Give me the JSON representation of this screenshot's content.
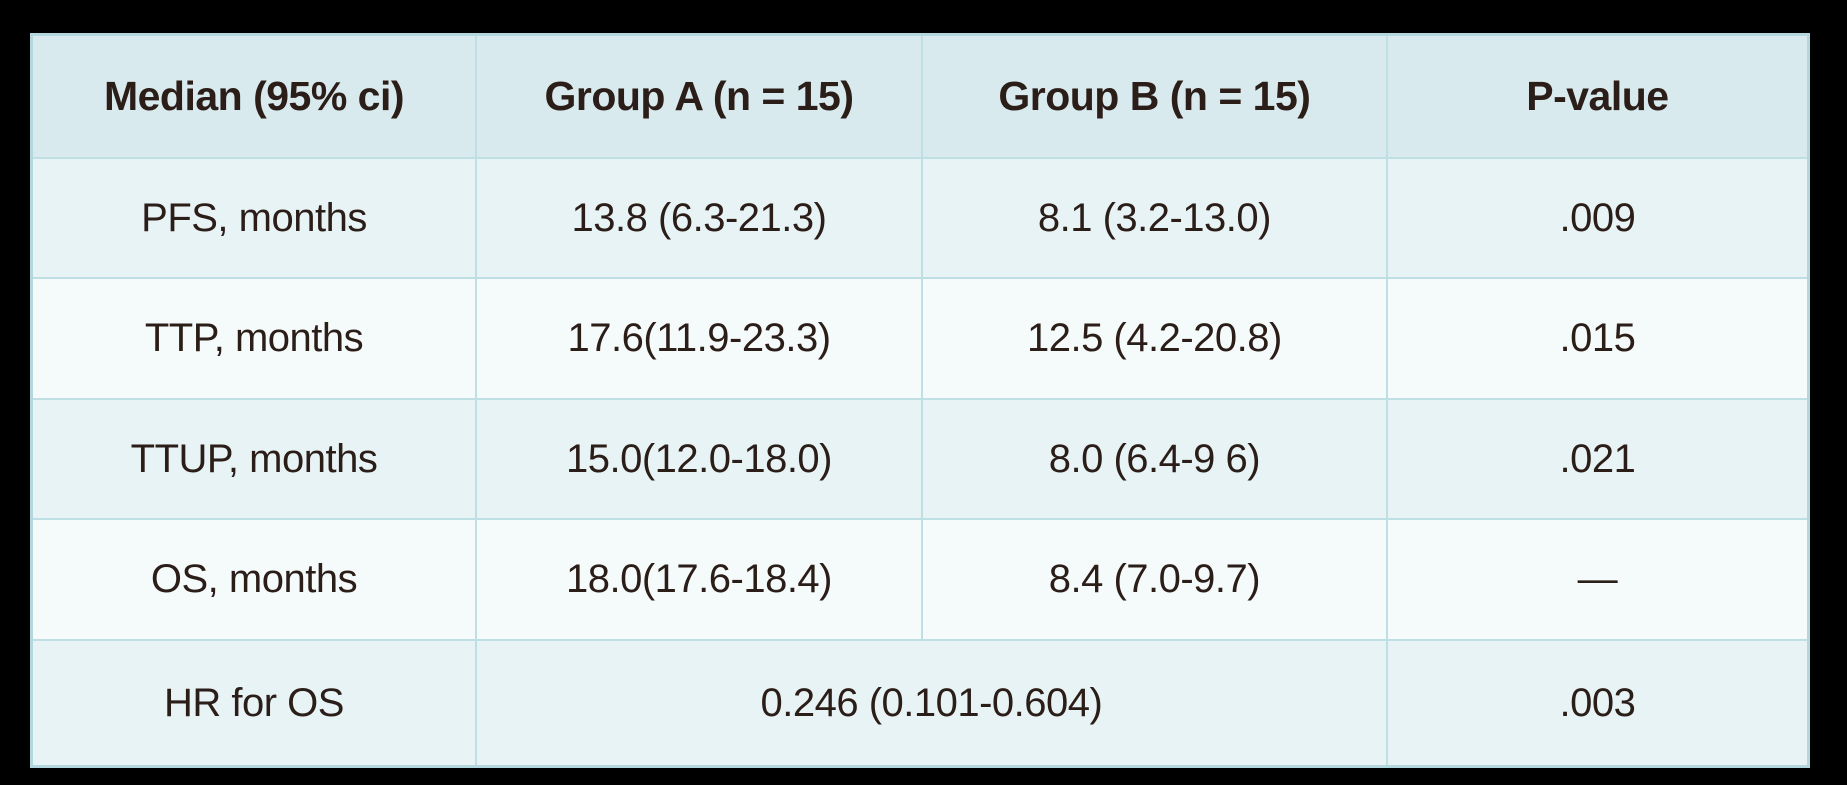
{
  "colors": {
    "canvas_background": "#000000",
    "header_bg": "#d8eaee",
    "row_odd_bg": "#e8f3f6",
    "row_even_bg": "#f5fafb",
    "grid_line": "#bedfe4",
    "outer_border": "#b2d8de",
    "text": "#2b1d18"
  },
  "chart_data": {
    "type": "table",
    "title": "",
    "columns": [
      "Median (95% ci)",
      "Group A (n = 15)",
      "Group B (n = 15)",
      "P-value"
    ],
    "rows": [
      [
        "PFS, months",
        "13.8 (6.3-21.3)",
        "8.1 (3.2-13.0)",
        ".009"
      ],
      [
        "TTP, months",
        "17.6(11.9-23.3)",
        "12.5 (4.2-20.8)",
        ".015"
      ],
      [
        "TTUP, months",
        "15.0(12.0-18.0)",
        "8.0 (6.4-9 6)",
        ".021"
      ],
      [
        "OS, months",
        "18.0(17.6-18.4)",
        "8.4 (7.0-9.7)",
        "—"
      ]
    ],
    "footer_row": {
      "label": "HR for OS",
      "merged_value": "0.246 (0.101-0.604)",
      "merged_value_spans": "Group A and Group B columns",
      "p_value": ".003"
    },
    "layout": {
      "grid": "on",
      "row_striping": "alternating light cyan / near white",
      "n_body_rows": 5
    }
  }
}
